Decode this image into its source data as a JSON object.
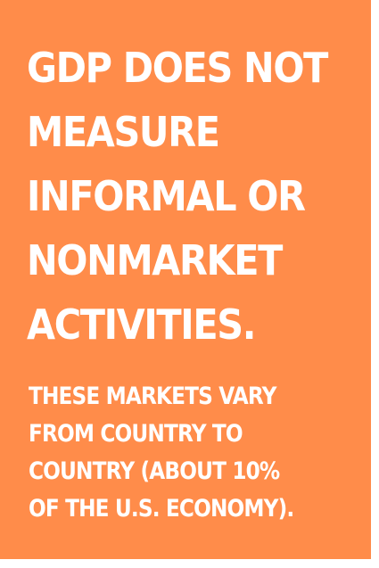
{
  "colors": {
    "card_background": "#ff8c4a",
    "text": "#ffffff",
    "page_background": "#ffffff"
  },
  "heading": {
    "lines": [
      "GDP DOES NOT",
      "MEASURE",
      "INFORMAL OR",
      "NONMARKET",
      "ACTIVITIES."
    ]
  },
  "body": {
    "lines": [
      "THESE MARKETS VARY",
      "FROM COUNTRY TO",
      "COUNTRY (ABOUT 10%",
      "OF THE U.S. ECONOMY)."
    ]
  }
}
